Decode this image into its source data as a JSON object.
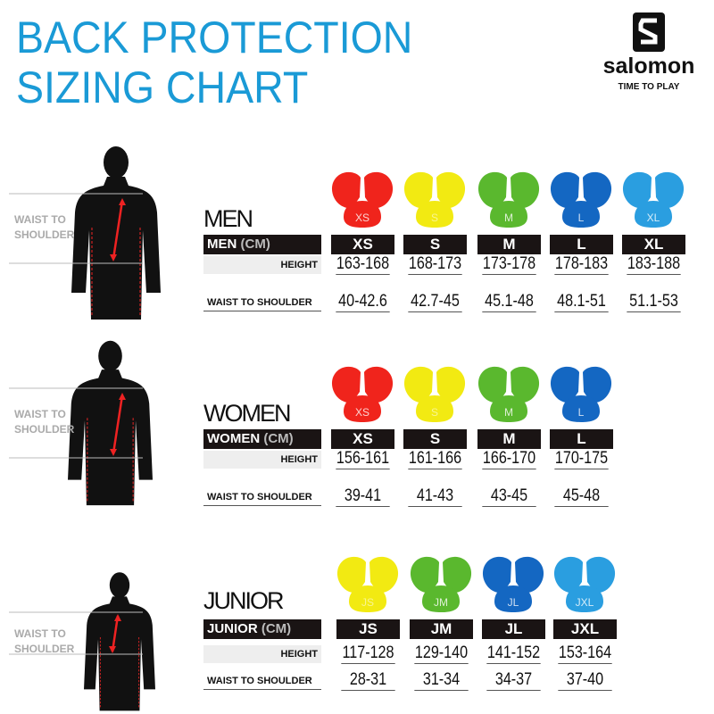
{
  "title": {
    "line1": "BACK PROTECTION",
    "line2": "SIZING CHART"
  },
  "logo": {
    "brand": "salomon",
    "tagline": "TIME TO PLAY"
  },
  "measure_label": {
    "line1": "WAIST TO",
    "line2": "SHOULDER"
  },
  "colors": {
    "title": "#1a9ad6",
    "XS": "#f0241c",
    "S": "#f2ea12",
    "M": "#5ab82e",
    "L": "#1467c2",
    "XL": "#2a9ee0"
  },
  "sections": [
    {
      "category": "MEN",
      "header_label": "MEN",
      "unit": "(CM)",
      "row_labels": [
        "HEIGHT",
        "WAIST TO SHOULDER"
      ],
      "sizes": [
        {
          "size": "XS",
          "pad_label": "XS",
          "color": "#f0241c",
          "height": "163-168",
          "waist_to_shoulder": "40-42.6"
        },
        {
          "size": "S",
          "pad_label": "S",
          "color": "#f2ea12",
          "height": "168-173",
          "waist_to_shoulder": "42.7-45"
        },
        {
          "size": "M",
          "pad_label": "M",
          "color": "#5ab82e",
          "height": "173-178",
          "waist_to_shoulder": "45.1-48"
        },
        {
          "size": "L",
          "pad_label": "L",
          "color": "#1467c2",
          "height": "178-183",
          "waist_to_shoulder": "48.1-51"
        },
        {
          "size": "XL",
          "pad_label": "XL",
          "color": "#2a9ee0",
          "height": "183-188",
          "waist_to_shoulder": "51.1-53"
        }
      ]
    },
    {
      "category": "WOMEN",
      "header_label": "WOMEN",
      "unit": "(CM)",
      "row_labels": [
        "HEIGHT",
        "WAIST TO SHOULDER"
      ],
      "sizes": [
        {
          "size": "XS",
          "pad_label": "XS",
          "color": "#f0241c",
          "height": "156-161",
          "waist_to_shoulder": "39-41"
        },
        {
          "size": "S",
          "pad_label": "S",
          "color": "#f2ea12",
          "height": "161-166",
          "waist_to_shoulder": "41-43"
        },
        {
          "size": "M",
          "pad_label": "M",
          "color": "#5ab82e",
          "height": "166-170",
          "waist_to_shoulder": "43-45"
        },
        {
          "size": "L",
          "pad_label": "L",
          "color": "#1467c2",
          "height": "170-175",
          "waist_to_shoulder": "45-48"
        }
      ]
    },
    {
      "category": "JUNIOR",
      "header_label": "JUNIOR",
      "unit": "(CM)",
      "row_labels": [
        "HEIGHT",
        "WAIST TO SHOULDER"
      ],
      "sizes": [
        {
          "size": "JS",
          "pad_label": "JS",
          "color": "#f2ea12",
          "height": "117-128",
          "waist_to_shoulder": "28-31"
        },
        {
          "size": "JM",
          "pad_label": "JM",
          "color": "#5ab82e",
          "height": "129-140",
          "waist_to_shoulder": "31-34"
        },
        {
          "size": "JL",
          "pad_label": "JL",
          "color": "#1467c2",
          "height": "141-152",
          "waist_to_shoulder": "34-37"
        },
        {
          "size": "JXL",
          "pad_label": "JXL",
          "color": "#2a9ee0",
          "height": "153-164",
          "waist_to_shoulder": "37-40"
        }
      ]
    }
  ]
}
